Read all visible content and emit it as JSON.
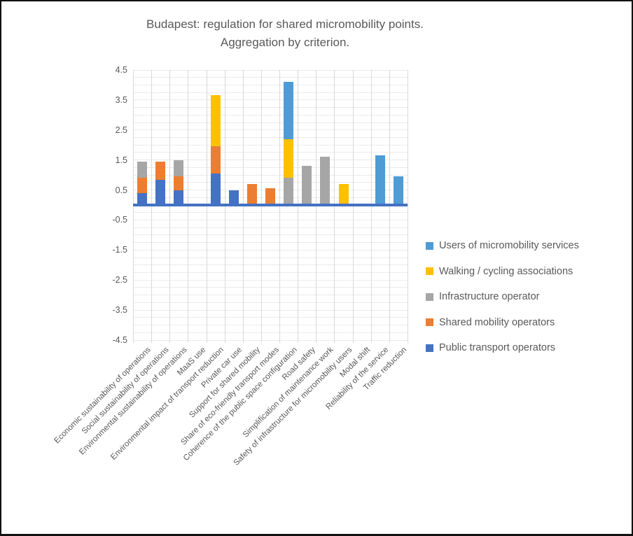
{
  "title_line1": "Budapest: regulation for shared micromobility points.",
  "title_line2": "Aggregation by criterion.",
  "chart_data": {
    "type": "bar",
    "stacked": true,
    "title": "Budapest: regulation for shared micromobility points. Aggregation by criterion.",
    "xlabel": "",
    "ylabel": "",
    "ylim": [
      -4.5,
      4.5
    ],
    "y_ticks": [
      4.5,
      3.5,
      2.5,
      1.5,
      0.5,
      -0.5,
      -1.5,
      -2.5,
      -3.5,
      -4.5
    ],
    "minor_grid_step": 0.25,
    "grid": true,
    "legend_position": "right",
    "axis_color": "#4472C4",
    "text_color": "#595959",
    "categories": [
      "Economic sustainability of operations",
      "Social sustainability of operations",
      "Environmental sustainability of operations",
      "MaaS use",
      "Environmental impact of transport reduction",
      "Private car use",
      "Support for shared mobility",
      "Share of eco-friendly transport modes",
      "Coherence of the public space configuration",
      "Road safety",
      "Simplification of maintenance work",
      "Safety of infrastructure for micromobility users",
      "Modal shift",
      "Reliability of the service",
      "Traffic reduction"
    ],
    "series": [
      {
        "name": "Users of micromobility services",
        "color": "#4E9BD5",
        "values": [
          0,
          0,
          0,
          0,
          0,
          0,
          0,
          0,
          1.9,
          0,
          0,
          0,
          0,
          1.65,
          0.95
        ]
      },
      {
        "name": "Walking / cycling associations",
        "color": "#FFC000",
        "values": [
          0,
          0,
          0,
          0,
          1.7,
          0,
          0,
          0,
          1.3,
          0,
          0,
          0.7,
          0,
          0,
          0
        ]
      },
      {
        "name": "Infrastructure operator",
        "color": "#A6A6A6",
        "values": [
          0.55,
          0,
          0.55,
          0,
          0,
          0,
          0,
          0,
          0.9,
          1.3,
          1.6,
          0,
          0,
          0,
          0
        ]
      },
      {
        "name": "Shared mobility operators",
        "color": "#ED7D31",
        "values": [
          0.5,
          0.6,
          0.45,
          0,
          0.9,
          0,
          0.7,
          0.55,
          0,
          0,
          0,
          0,
          0,
          0,
          0
        ]
      },
      {
        "name": "Public transport operators",
        "color": "#4472C4",
        "values": [
          0.4,
          0.85,
          0.5,
          0,
          1.05,
          0.5,
          0,
          0,
          0,
          0,
          0,
          0,
          0,
          0,
          0
        ]
      }
    ]
  }
}
